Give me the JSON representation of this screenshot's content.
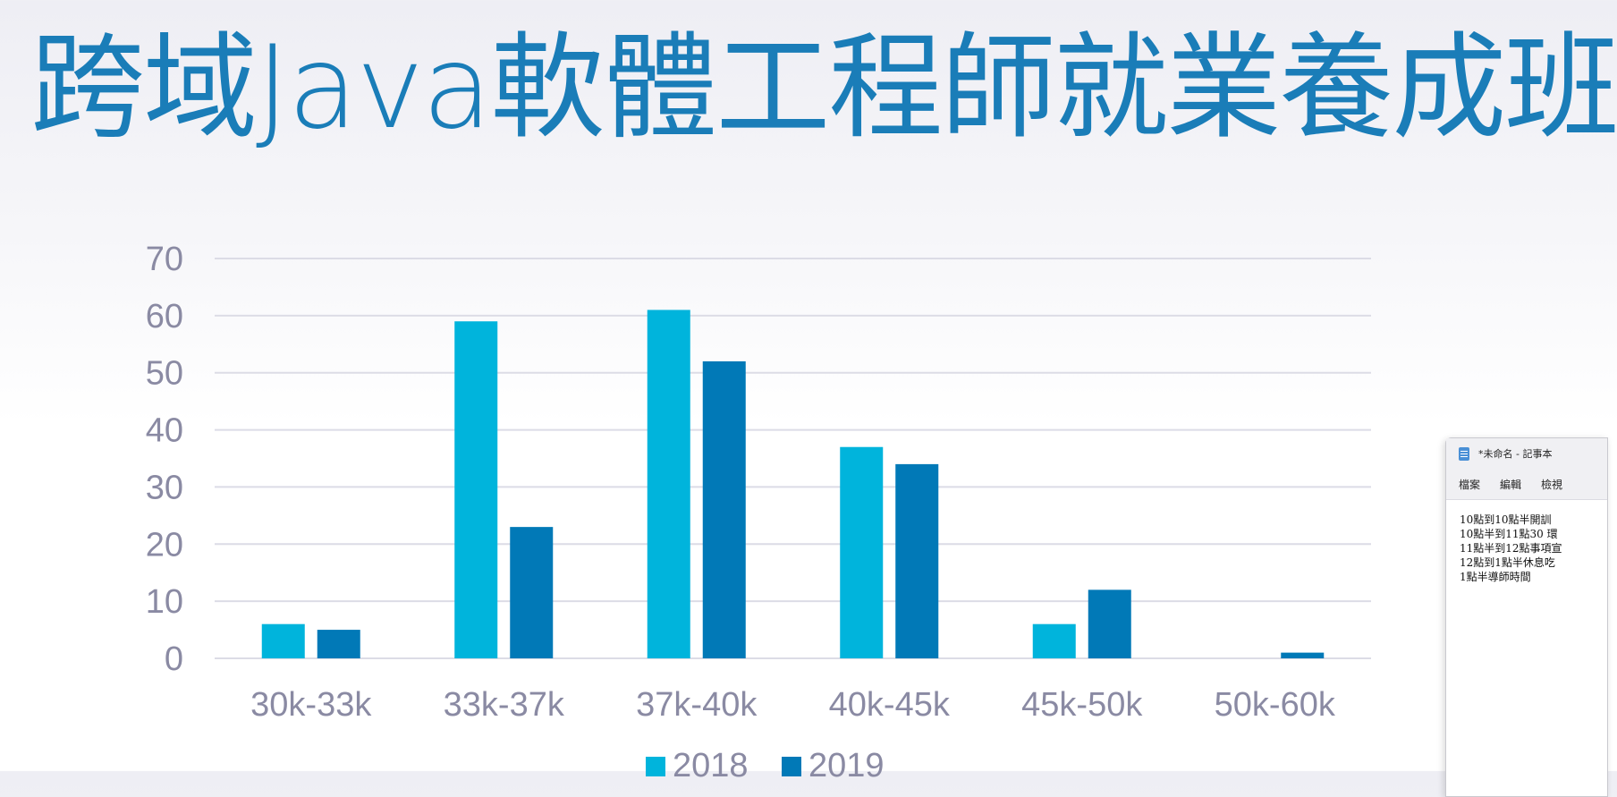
{
  "slide": {
    "title": "跨域Java軟體工程師就業養成班"
  },
  "chart_data": {
    "type": "bar",
    "title": "",
    "xlabel": "",
    "ylabel": "",
    "categories": [
      "30k-33k",
      "33k-37k",
      "37k-40k",
      "40k-45k",
      "45k-50k",
      "50k-60k"
    ],
    "series": [
      {
        "name": "2018",
        "color": "#00b4dc",
        "values": [
          6,
          59,
          61,
          37,
          6,
          0
        ]
      },
      {
        "name": "2019",
        "color": "#0179b7",
        "values": [
          5,
          23,
          52,
          34,
          12,
          1
        ]
      }
    ],
    "ylim": [
      0,
      70
    ],
    "yticks": [
      0,
      10,
      20,
      30,
      40,
      50,
      60,
      70
    ],
    "grid": true,
    "legend": "bottom"
  },
  "notepad": {
    "title": "*未命名 - 記事本",
    "icon": "notepad-icon",
    "menu": [
      "檔案",
      "編輯",
      "檢視"
    ],
    "lines": [
      "10點到10點半開訓",
      "10點半到11點30 環",
      "11點半到12點事項宣",
      "12點到1點半休息吃",
      "1點半導師時間"
    ]
  }
}
